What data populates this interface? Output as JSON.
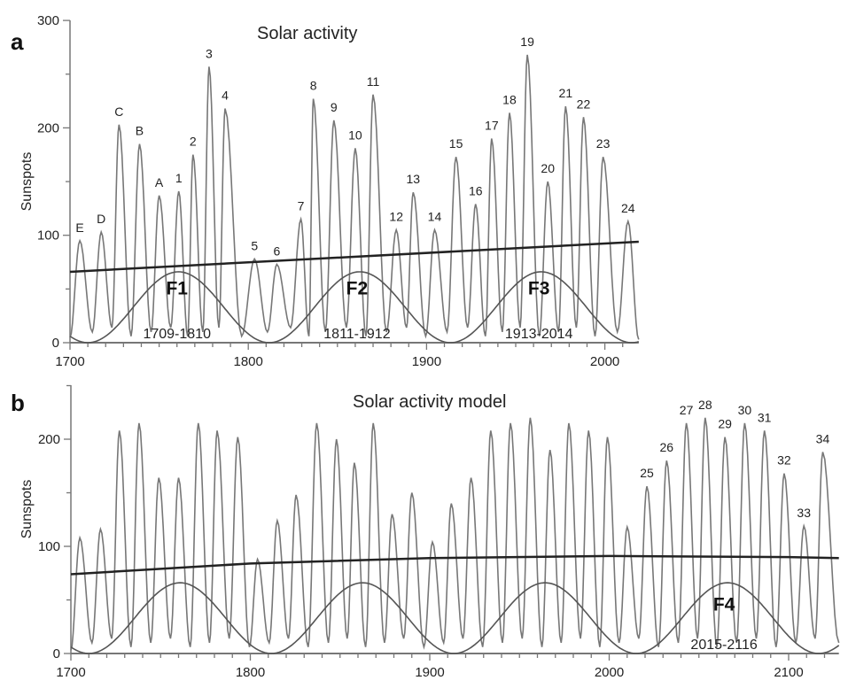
{
  "chart_data": [
    {
      "panel": "a",
      "type": "line",
      "title": "Solar activity",
      "ylabel": "Sunspots",
      "xlim": [
        1700,
        2019
      ],
      "ylim": [
        0,
        300
      ],
      "xticks": [
        1700,
        1800,
        1900,
        2000
      ],
      "yticks": [
        0,
        100,
        200,
        300
      ],
      "grid": false,
      "series": [
        {
          "name": "Sunspots",
          "start": [
            1700,
            5
          ],
          "end": [
            2019,
            3
          ],
          "peaks": [
            {
              "label": "E",
              "year": 1705.5,
              "value": 95
            },
            {
              "label": "D",
              "year": 1717.5,
              "value": 103
            },
            {
              "label": "C",
              "year": 1727.5,
              "value": 203
            },
            {
              "label": "B",
              "year": 1739,
              "value": 185
            },
            {
              "label": "A",
              "year": 1750,
              "value": 137
            },
            {
              "label": "1",
              "year": 1761,
              "value": 141
            },
            {
              "label": "2",
              "year": 1769,
              "value": 175
            },
            {
              "label": "3",
              "year": 1778,
              "value": 257
            },
            {
              "label": "4",
              "year": 1787,
              "value": 218
            },
            {
              "label": "5",
              "year": 1803.5,
              "value": 78
            },
            {
              "label": "6",
              "year": 1816,
              "value": 73
            },
            {
              "label": "7",
              "year": 1829.5,
              "value": 115
            },
            {
              "label": "8",
              "year": 1836.5,
              "value": 227
            },
            {
              "label": "9",
              "year": 1848,
              "value": 207
            },
            {
              "label": "10",
              "year": 1860,
              "value": 181
            },
            {
              "label": "11",
              "year": 1870,
              "value": 231
            },
            {
              "label": "12",
              "year": 1883,
              "value": 105
            },
            {
              "label": "13",
              "year": 1892.5,
              "value": 140
            },
            {
              "label": "14",
              "year": 1904.5,
              "value": 105
            },
            {
              "label": "15",
              "year": 1916.5,
              "value": 173
            },
            {
              "label": "16",
              "year": 1927.5,
              "value": 129
            },
            {
              "label": "17",
              "year": 1936.5,
              "value": 190
            },
            {
              "label": "18",
              "year": 1946.5,
              "value": 214
            },
            {
              "label": "19",
              "year": 1956.5,
              "value": 268
            },
            {
              "label": "20",
              "year": 1968,
              "value": 150
            },
            {
              "label": "21",
              "year": 1978,
              "value": 220
            },
            {
              "label": "22",
              "year": 1988,
              "value": 210
            },
            {
              "label": "23",
              "year": 1999,
              "value": 173
            },
            {
              "label": "24",
              "year": 2013,
              "value": 113
            }
          ]
        },
        {
          "name": "Trend",
          "x": [
            1700,
            2019
          ],
          "y": [
            66,
            94
          ]
        },
        {
          "name": "Envelope",
          "amplitude": 66,
          "period": 101.7,
          "first_minimum": 1710,
          "x_range": [
            1700,
            2019
          ]
        }
      ],
      "annotations": [
        {
          "text": "F1",
          "year": 1760,
          "value": 45,
          "kind": "f"
        },
        {
          "text": "F2",
          "year": 1861,
          "value": 45,
          "kind": "f"
        },
        {
          "text": "F3",
          "year": 1963,
          "value": 45,
          "kind": "f"
        },
        {
          "text": "1709-1810",
          "year": 1760,
          "value": 4,
          "kind": "range"
        },
        {
          "text": "1811-1912",
          "year": 1861,
          "value": 4,
          "kind": "range"
        },
        {
          "text": "1913-2014",
          "year": 1963,
          "value": 4,
          "kind": "range"
        }
      ]
    },
    {
      "panel": "b",
      "type": "line",
      "title": "Solar activity model",
      "ylabel": "Sunspots",
      "xlim": [
        1700,
        2128
      ],
      "ylim": [
        0,
        250
      ],
      "xticks": [
        1700,
        1800,
        1900,
        2000,
        2100
      ],
      "yticks": [
        0,
        100,
        200
      ],
      "grid": false,
      "series": [
        {
          "name": "Model sunspots",
          "start": [
            1700,
            3
          ],
          "end": [
            2128,
            10
          ],
          "peaks": [
            {
              "label": "",
              "year": 1705,
              "value": 108
            },
            {
              "label": "",
              "year": 1716.5,
              "value": 116
            },
            {
              "label": "",
              "year": 1727,
              "value": 208
            },
            {
              "label": "",
              "year": 1738,
              "value": 215
            },
            {
              "label": "",
              "year": 1749,
              "value": 164
            },
            {
              "label": "",
              "year": 1760,
              "value": 164
            },
            {
              "label": "",
              "year": 1771,
              "value": 215
            },
            {
              "label": "",
              "year": 1781.5,
              "value": 208
            },
            {
              "label": "",
              "year": 1793,
              "value": 202
            },
            {
              "label": "",
              "year": 1804,
              "value": 88
            },
            {
              "label": "",
              "year": 1815,
              "value": 124
            },
            {
              "label": "",
              "year": 1825.5,
              "value": 148
            },
            {
              "label": "",
              "year": 1837,
              "value": 215
            },
            {
              "label": "",
              "year": 1848,
              "value": 200
            },
            {
              "label": "",
              "year": 1858,
              "value": 178
            },
            {
              "label": "",
              "year": 1868.5,
              "value": 215
            },
            {
              "label": "",
              "year": 1879,
              "value": 130
            },
            {
              "label": "",
              "year": 1890,
              "value": 150
            },
            {
              "label": "",
              "year": 1901.5,
              "value": 104
            },
            {
              "label": "",
              "year": 1912,
              "value": 140
            },
            {
              "label": "",
              "year": 1923,
              "value": 164
            },
            {
              "label": "",
              "year": 1934,
              "value": 208
            },
            {
              "label": "",
              "year": 1945,
              "value": 215
            },
            {
              "label": "",
              "year": 1956,
              "value": 220
            },
            {
              "label": "",
              "year": 1967,
              "value": 190
            },
            {
              "label": "",
              "year": 1977.5,
              "value": 215
            },
            {
              "label": "",
              "year": 1988.5,
              "value": 208
            },
            {
              "label": "",
              "year": 1999,
              "value": 202
            },
            {
              "label": "",
              "year": 2010,
              "value": 118
            },
            {
              "label": "25",
              "year": 2021,
              "value": 156
            },
            {
              "label": "26",
              "year": 2032,
              "value": 180
            },
            {
              "label": "27",
              "year": 2043,
              "value": 215
            },
            {
              "label": "28",
              "year": 2053.5,
              "value": 220
            },
            {
              "label": "29",
              "year": 2064.5,
              "value": 202
            },
            {
              "label": "30",
              "year": 2075.5,
              "value": 215
            },
            {
              "label": "31",
              "year": 2086.5,
              "value": 208
            },
            {
              "label": "32",
              "year": 2097.5,
              "value": 168
            },
            {
              "label": "33",
              "year": 2108.5,
              "value": 119
            },
            {
              "label": "34",
              "year": 2119,
              "value": 188
            }
          ]
        },
        {
          "name": "Trend",
          "x": [
            1700,
            1800,
            1900,
            2000,
            2100,
            2128
          ],
          "y": [
            74,
            84,
            89,
            91,
            90,
            89
          ]
        },
        {
          "name": "Envelope",
          "amplitude": 66,
          "period": 101.7,
          "first_minimum": 1710,
          "x_range": [
            1700,
            2128
          ]
        }
      ],
      "annotations": [
        {
          "text": "F4",
          "year": 2064,
          "value": 40,
          "kind": "f"
        },
        {
          "text": "2015-2116",
          "year": 2064,
          "value": 4,
          "kind": "range"
        }
      ]
    }
  ]
}
